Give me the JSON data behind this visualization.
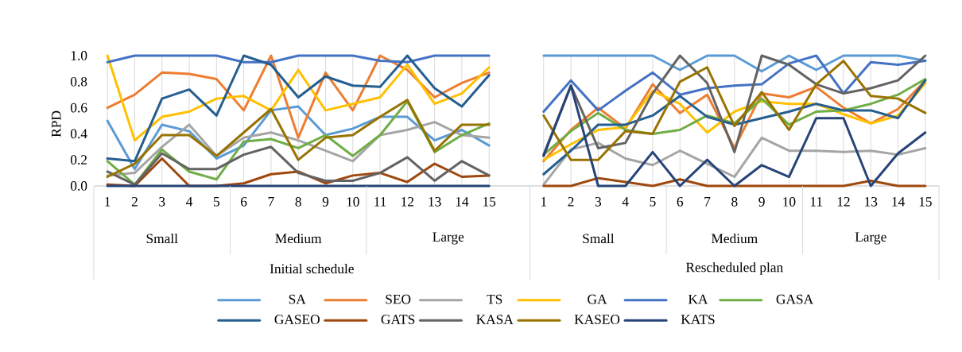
{
  "chart_data": {
    "type": "line",
    "ylabel": "RPD",
    "categories": [
      "1",
      "2",
      "3",
      "4",
      "5",
      "6",
      "7",
      "8",
      "9",
      "10",
      "11",
      "12",
      "13",
      "14",
      "15",
      null,
      "1",
      "2",
      "3",
      "4",
      "5",
      "6",
      "7",
      "8",
      "9",
      "10",
      "11",
      "12",
      "13",
      "14",
      "15"
    ],
    "series": [
      {
        "name": "SA",
        "color": "#5b9bd5",
        "values": [
          0.5,
          0.13,
          0.47,
          0.42,
          0.21,
          0.31,
          0.58,
          0.61,
          0.39,
          0.44,
          0.53,
          0.53,
          0.35,
          0.43,
          0.31,
          null,
          1.0,
          1.0,
          1.0,
          1.0,
          1.0,
          0.89,
          1.0,
          1.0,
          0.88,
          1.0,
          0.89,
          1.0,
          1.0,
          1.0,
          0.96
        ]
      },
      {
        "name": "SEO",
        "color": "#ed7d31",
        "values": [
          0.6,
          0.7,
          0.87,
          0.86,
          0.82,
          0.58,
          1.0,
          0.37,
          0.87,
          0.58,
          1.0,
          0.89,
          0.68,
          0.79,
          0.87,
          null,
          0.19,
          0.43,
          0.6,
          0.44,
          0.78,
          0.56,
          0.7,
          0.29,
          0.71,
          0.68,
          0.76,
          0.6,
          0.48,
          0.59,
          0.81
        ]
      },
      {
        "name": "TS",
        "color": "#a5a5a5",
        "values": [
          0.08,
          0.1,
          0.3,
          0.47,
          0.23,
          0.37,
          0.41,
          0.35,
          0.27,
          0.19,
          0.39,
          0.43,
          0.49,
          0.39,
          0.37,
          null,
          0.01,
          0.28,
          0.33,
          0.21,
          0.16,
          0.27,
          0.17,
          0.07,
          0.37,
          0.27,
          0.27,
          0.26,
          0.27,
          0.24,
          0.29
        ]
      },
      {
        "name": "GA",
        "color": "#ffc000",
        "values": [
          1.0,
          0.35,
          0.53,
          0.57,
          0.67,
          0.69,
          0.58,
          0.89,
          0.58,
          0.63,
          0.68,
          0.93,
          0.63,
          0.71,
          0.91,
          null,
          0.2,
          0.32,
          0.43,
          0.45,
          0.73,
          0.63,
          0.41,
          0.57,
          0.65,
          0.63,
          0.63,
          0.55,
          0.48,
          0.54,
          0.79
        ]
      },
      {
        "name": "KA",
        "color": "#4472c4",
        "values": [
          0.95,
          1.0,
          1.0,
          1.0,
          1.0,
          0.95,
          0.95,
          1.0,
          1.0,
          1.0,
          0.96,
          0.95,
          1.0,
          1.0,
          1.0,
          null,
          0.57,
          0.81,
          0.58,
          0.73,
          0.87,
          0.7,
          0.75,
          0.77,
          0.78,
          0.94,
          1.0,
          0.71,
          0.95,
          0.93,
          0.96
        ]
      },
      {
        "name": "GASA",
        "color": "#70ad47",
        "values": [
          0.19,
          0.01,
          0.28,
          0.11,
          0.05,
          0.34,
          0.36,
          0.29,
          0.39,
          0.23,
          0.39,
          0.65,
          0.26,
          0.39,
          0.48,
          null,
          0.24,
          0.42,
          0.56,
          0.43,
          0.4,
          0.43,
          0.54,
          0.48,
          0.67,
          0.47,
          0.57,
          0.58,
          0.63,
          0.7,
          0.82
        ]
      },
      {
        "name": "GASEO",
        "color": "#255e91",
        "values": [
          0.21,
          0.19,
          0.67,
          0.74,
          0.54,
          1.0,
          0.93,
          0.68,
          0.84,
          0.77,
          0.76,
          1.0,
          0.75,
          0.61,
          0.85,
          null,
          0.09,
          0.27,
          0.47,
          0.47,
          0.54,
          0.69,
          0.53,
          0.47,
          0.52,
          0.57,
          0.63,
          0.58,
          0.58,
          0.52,
          0.81
        ]
      },
      {
        "name": "GATS",
        "color": "#9e480e",
        "values": [
          0.01,
          0.0,
          0.21,
          0.0,
          0.0,
          0.02,
          0.09,
          0.11,
          0.02,
          0.08,
          0.1,
          0.03,
          0.17,
          0.07,
          0.08,
          null,
          0.0,
          0.0,
          0.06,
          0.03,
          0.0,
          0.05,
          0.0,
          0.0,
          0.0,
          0.0,
          0.0,
          0.0,
          0.04,
          0.0,
          0.0
        ]
      },
      {
        "name": "KASA",
        "color": "#636363",
        "values": [
          0.11,
          0.01,
          0.25,
          0.13,
          0.13,
          0.24,
          0.3,
          0.1,
          0.04,
          0.04,
          0.1,
          0.22,
          0.04,
          0.19,
          0.08,
          null,
          0.24,
          0.77,
          0.29,
          0.33,
          0.71,
          1.0,
          0.79,
          0.26,
          1.0,
          0.93,
          0.78,
          0.71,
          0.75,
          0.81,
          1.0
        ]
      },
      {
        "name": "KASEO",
        "color": "#997300",
        "values": [
          0.07,
          0.17,
          0.39,
          0.39,
          0.23,
          0.41,
          0.59,
          0.2,
          0.37,
          0.39,
          0.53,
          0.66,
          0.27,
          0.47,
          0.47,
          null,
          0.54,
          0.2,
          0.2,
          0.42,
          0.4,
          0.8,
          0.91,
          0.46,
          0.72,
          0.43,
          0.78,
          0.96,
          0.69,
          0.67,
          0.56
        ]
      },
      {
        "name": "KATS",
        "color": "#264478",
        "values": [
          0.0,
          0.0,
          0.0,
          0.0,
          0.0,
          0.0,
          0.0,
          0.0,
          0.0,
          0.0,
          0.0,
          0.0,
          0.0,
          0.0,
          0.0,
          null,
          0.23,
          0.77,
          0.0,
          0.0,
          0.26,
          0.0,
          0.2,
          0.0,
          0.16,
          0.07,
          0.52,
          0.52,
          0.0,
          0.25,
          0.41
        ]
      }
    ],
    "ylim": [
      0,
      1.0
    ],
    "yticks": [
      {
        "value": 0,
        "label": "0.0"
      },
      {
        "value": 0.2,
        "label": "0.2"
      },
      {
        "value": 0.4,
        "label": "0.4"
      },
      {
        "value": 0.6,
        "label": "0.6"
      },
      {
        "value": 0.8,
        "label": "0.8"
      },
      {
        "value": 1.0,
        "label": "1.0"
      }
    ],
    "annotations": [
      "Small",
      "Medium",
      "Large",
      "Small",
      "Medium",
      "Large",
      "Initial schedule",
      "Rescheduled plan"
    ],
    "grid": "x",
    "legend": "bottom",
    "marker": "none",
    "line_style": "solid"
  }
}
